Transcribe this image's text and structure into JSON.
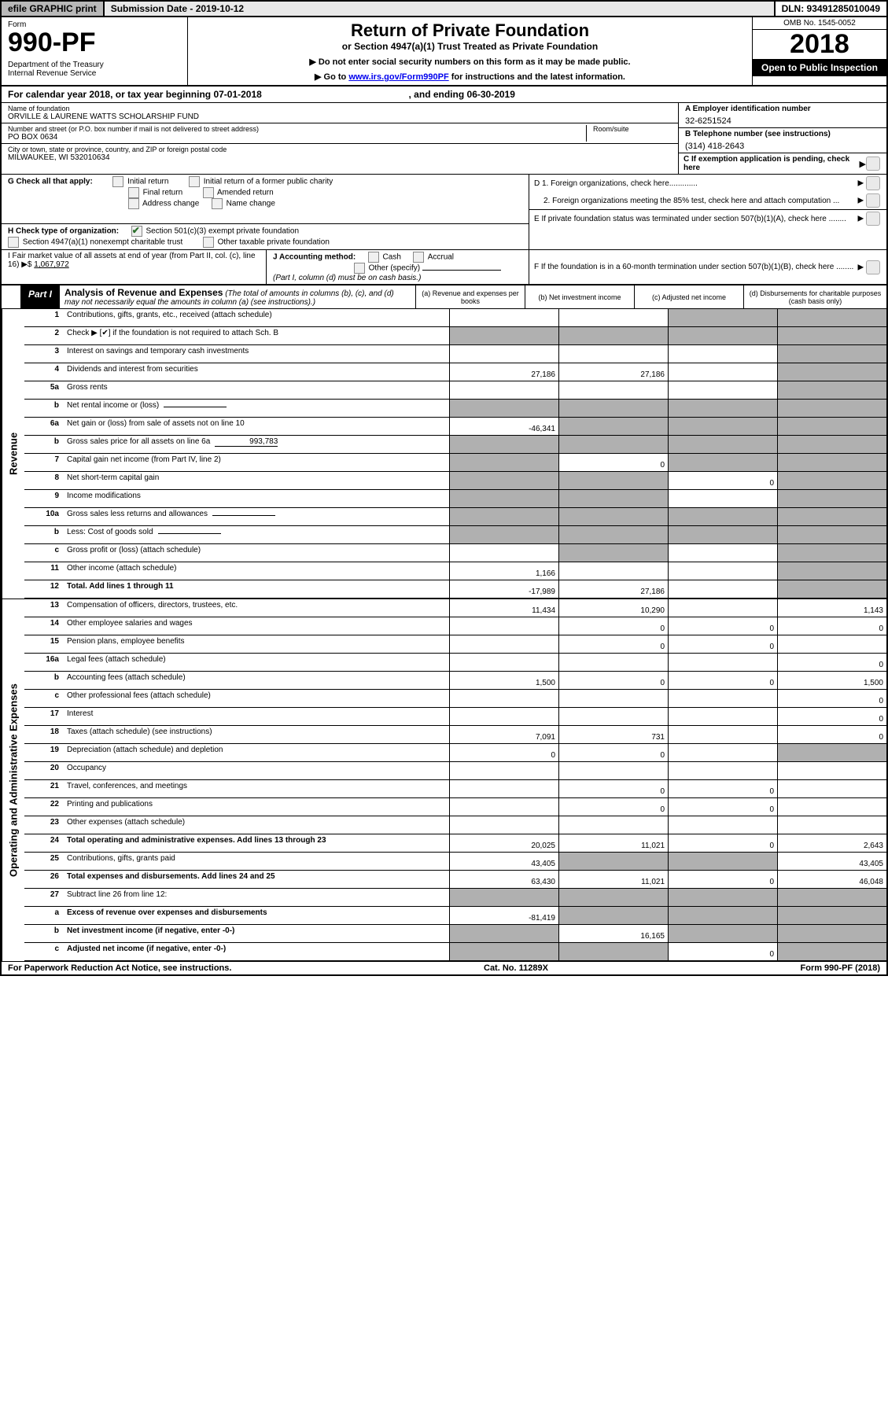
{
  "meta": {
    "efile_label": "efile GRAPHIC print",
    "submission_label": "Submission Date - 2019-10-12",
    "dln_label": "DLN: 93491285010049"
  },
  "header": {
    "form_label": "Form",
    "form_number": "990-PF",
    "dept": "Department of the Treasury\nInternal Revenue Service",
    "title": "Return of Private Foundation",
    "subtitle": "or Section 4947(a)(1) Trust Treated as Private Foundation",
    "instr1": "▶ Do not enter social security numbers on this form as it may be made public.",
    "instr2_prefix": "▶ Go to ",
    "instr2_link": "www.irs.gov/Form990PF",
    "instr2_suffix": " for instructions and the latest information.",
    "omb": "OMB No. 1545-0052",
    "year": "2018",
    "open": "Open to Public Inspection"
  },
  "cal": {
    "text1": "For calendar year 2018, or tax year beginning 07-01-2018",
    "text2": ", and ending 06-30-2019"
  },
  "id": {
    "name_label": "Name of foundation",
    "name": "ORVILLE & LAURENE WATTS SCHOLARSHIP FUND",
    "addr_label": "Number and street (or P.O. box number if mail is not delivered to street address)",
    "addr": "PO BOX 0634",
    "room_label": "Room/suite",
    "city_label": "City or town, state or province, country, and ZIP or foreign postal code",
    "city": "MILWAUKEE, WI  532010634",
    "a_label": "A Employer identification number",
    "a_val": "32-6251524",
    "b_label": "B Telephone number (see instructions)",
    "b_val": "(314) 418-2643",
    "c_label": "C If exemption application is pending, check here"
  },
  "g": {
    "label": "G Check all that apply:",
    "opts": [
      "Initial return",
      "Initial return of a former public charity",
      "Final return",
      "Amended return",
      "Address change",
      "Name change"
    ]
  },
  "h": {
    "label": "H Check type of organization:",
    "opt1": "Section 501(c)(3) exempt private foundation",
    "opt2": "Section 4947(a)(1) nonexempt charitable trust",
    "opt3": "Other taxable private foundation"
  },
  "i": {
    "label": "I Fair market value of all assets at end of year (from Part II, col. (c), line 16) ▶$",
    "val": "1,067,972"
  },
  "j": {
    "label": "J Accounting method:",
    "opts": [
      "Cash",
      "Accrual"
    ],
    "other": "Other (specify)",
    "note": "(Part I, column (d) must be on cash basis.)"
  },
  "d": {
    "l1": "D 1. Foreign organizations, check here.............",
    "l2": "2. Foreign organizations meeting the 85% test, check here and attach computation ..."
  },
  "e": {
    "text": "E  If private foundation status was terminated under section 507(b)(1)(A), check here ........"
  },
  "f": {
    "text": "F  If the foundation is in a 60-month termination under section 507(b)(1)(B), check here ........"
  },
  "part1": {
    "tab": "Part I",
    "title": "Analysis of Revenue and Expenses",
    "note": "(The total of amounts in columns (b), (c), and (d) may not necessarily equal the amounts in column (a) (see instructions).)",
    "cols": {
      "a": "(a)   Revenue and expenses per books",
      "b": "(b)   Net investment income",
      "c": "(c)   Adjusted net income",
      "d": "(d)   Disbursements for charitable purposes (cash basis only)"
    }
  },
  "side_labels": {
    "rev": "Revenue",
    "exp": "Operating and Administrative Expenses"
  },
  "rows": {
    "r1": {
      "num": "1",
      "desc": "Contributions, gifts, grants, etc., received (attach schedule)",
      "a": "",
      "b": "",
      "c": "",
      "d": "",
      "grey": "cd"
    },
    "r2": {
      "num": "2",
      "desc": "Check ▶ [✔] if the foundation is not required to attach Sch. B",
      "a": "",
      "b": "",
      "c": "",
      "d": "",
      "grey": "abcd"
    },
    "r3": {
      "num": "3",
      "desc": "Interest on savings and temporary cash investments",
      "a": "",
      "b": "",
      "c": "",
      "d": "",
      "grey": "d"
    },
    "r4": {
      "num": "4",
      "desc": "Dividends and interest from securities",
      "a": "27,186",
      "b": "27,186",
      "c": "",
      "d": "",
      "grey": "d"
    },
    "r5a": {
      "num": "5a",
      "desc": "Gross rents",
      "a": "",
      "b": "",
      "c": "",
      "d": "",
      "grey": "d"
    },
    "r5b": {
      "num": "b",
      "desc": "Net rental income or (loss)",
      "a": "",
      "b": "",
      "c": "",
      "d": "",
      "grey": "abcd",
      "inline": ""
    },
    "r6a": {
      "num": "6a",
      "desc": "Net gain or (loss) from sale of assets not on line 10",
      "a": "-46,341",
      "b": "",
      "c": "",
      "d": "",
      "grey": "bcd"
    },
    "r6b": {
      "num": "b",
      "desc": "Gross sales price for all assets on line 6a",
      "a": "",
      "b": "",
      "c": "",
      "d": "",
      "grey": "abcd",
      "inline": "993,783"
    },
    "r7": {
      "num": "7",
      "desc": "Capital gain net income (from Part IV, line 2)",
      "a": "",
      "b": "0",
      "c": "",
      "d": "",
      "grey": "acd"
    },
    "r8": {
      "num": "8",
      "desc": "Net short-term capital gain",
      "a": "",
      "b": "",
      "c": "0",
      "d": "",
      "grey": "abd"
    },
    "r9": {
      "num": "9",
      "desc": "Income modifications",
      "a": "",
      "b": "",
      "c": "",
      "d": "",
      "grey": "abd"
    },
    "r10a": {
      "num": "10a",
      "desc": "Gross sales less returns and allowances",
      "a": "",
      "b": "",
      "c": "",
      "d": "",
      "grey": "abcd",
      "inline": ""
    },
    "r10b": {
      "num": "b",
      "desc": "Less: Cost of goods sold",
      "a": "",
      "b": "",
      "c": "",
      "d": "",
      "grey": "abcd",
      "inline": ""
    },
    "r10c": {
      "num": "c",
      "desc": "Gross profit or (loss) (attach schedule)",
      "a": "",
      "b": "",
      "c": "",
      "d": "",
      "grey": "bd"
    },
    "r11": {
      "num": "11",
      "desc": "Other income (attach schedule)",
      "a": "1,166",
      "b": "",
      "c": "",
      "d": "",
      "grey": "d"
    },
    "r12": {
      "num": "12",
      "desc": "Total. Add lines 1 through 11",
      "a": "-17,989",
      "b": "27,186",
      "c": "",
      "d": "",
      "grey": "d",
      "bold": true
    },
    "r13": {
      "num": "13",
      "desc": "Compensation of officers, directors, trustees, etc.",
      "a": "11,434",
      "b": "10,290",
      "c": "",
      "d": "1,143"
    },
    "r14": {
      "num": "14",
      "desc": "Other employee salaries and wages",
      "a": "",
      "b": "0",
      "c": "0",
      "d": "0"
    },
    "r15": {
      "num": "15",
      "desc": "Pension plans, employee benefits",
      "a": "",
      "b": "0",
      "c": "0",
      "d": ""
    },
    "r16a": {
      "num": "16a",
      "desc": "Legal fees (attach schedule)",
      "a": "",
      "b": "",
      "c": "",
      "d": "0"
    },
    "r16b": {
      "num": "b",
      "desc": "Accounting fees (attach schedule)",
      "a": "1,500",
      "b": "0",
      "c": "0",
      "d": "1,500"
    },
    "r16c": {
      "num": "c",
      "desc": "Other professional fees (attach schedule)",
      "a": "",
      "b": "",
      "c": "",
      "d": "0"
    },
    "r17": {
      "num": "17",
      "desc": "Interest",
      "a": "",
      "b": "",
      "c": "",
      "d": "0"
    },
    "r18": {
      "num": "18",
      "desc": "Taxes (attach schedule) (see instructions)",
      "a": "7,091",
      "b": "731",
      "c": "",
      "d": "0"
    },
    "r19": {
      "num": "19",
      "desc": "Depreciation (attach schedule) and depletion",
      "a": "0",
      "b": "0",
      "c": "",
      "d": "",
      "grey": "d"
    },
    "r20": {
      "num": "20",
      "desc": "Occupancy",
      "a": "",
      "b": "",
      "c": "",
      "d": ""
    },
    "r21": {
      "num": "21",
      "desc": "Travel, conferences, and meetings",
      "a": "",
      "b": "0",
      "c": "0",
      "d": ""
    },
    "r22": {
      "num": "22",
      "desc": "Printing and publications",
      "a": "",
      "b": "0",
      "c": "0",
      "d": ""
    },
    "r23": {
      "num": "23",
      "desc": "Other expenses (attach schedule)",
      "a": "",
      "b": "",
      "c": "",
      "d": ""
    },
    "r24": {
      "num": "24",
      "desc": "Total operating and administrative expenses. Add lines 13 through 23",
      "a": "20,025",
      "b": "11,021",
      "c": "0",
      "d": "2,643",
      "bold": true
    },
    "r25": {
      "num": "25",
      "desc": "Contributions, gifts, grants paid",
      "a": "43,405",
      "b": "",
      "c": "",
      "d": "43,405",
      "grey": "bc"
    },
    "r26": {
      "num": "26",
      "desc": "Total expenses and disbursements. Add lines 24 and 25",
      "a": "63,430",
      "b": "11,021",
      "c": "0",
      "d": "46,048",
      "bold": true
    },
    "r27": {
      "num": "27",
      "desc": "Subtract line 26 from line 12:",
      "a": "",
      "b": "",
      "c": "",
      "d": "",
      "grey": "abcd"
    },
    "r27a": {
      "num": "a",
      "desc": "Excess of revenue over expenses and disbursements",
      "a": "-81,419",
      "b": "",
      "c": "",
      "d": "",
      "grey": "bcd",
      "bold": true
    },
    "r27b": {
      "num": "b",
      "desc": "Net investment income (if negative, enter -0-)",
      "a": "",
      "b": "16,165",
      "c": "",
      "d": "",
      "grey": "acd",
      "bold": true
    },
    "r27c": {
      "num": "c",
      "desc": "Adjusted net income (if negative, enter -0-)",
      "a": "",
      "b": "",
      "c": "0",
      "d": "",
      "grey": "abd",
      "bold": true
    }
  },
  "footer": {
    "left": "For Paperwork Reduction Act Notice, see instructions.",
    "mid": "Cat. No. 11289X",
    "right": "Form 990-PF (2018)"
  },
  "col_widths": {
    "a": 130,
    "b": 130,
    "c": 130,
    "d": 150
  }
}
